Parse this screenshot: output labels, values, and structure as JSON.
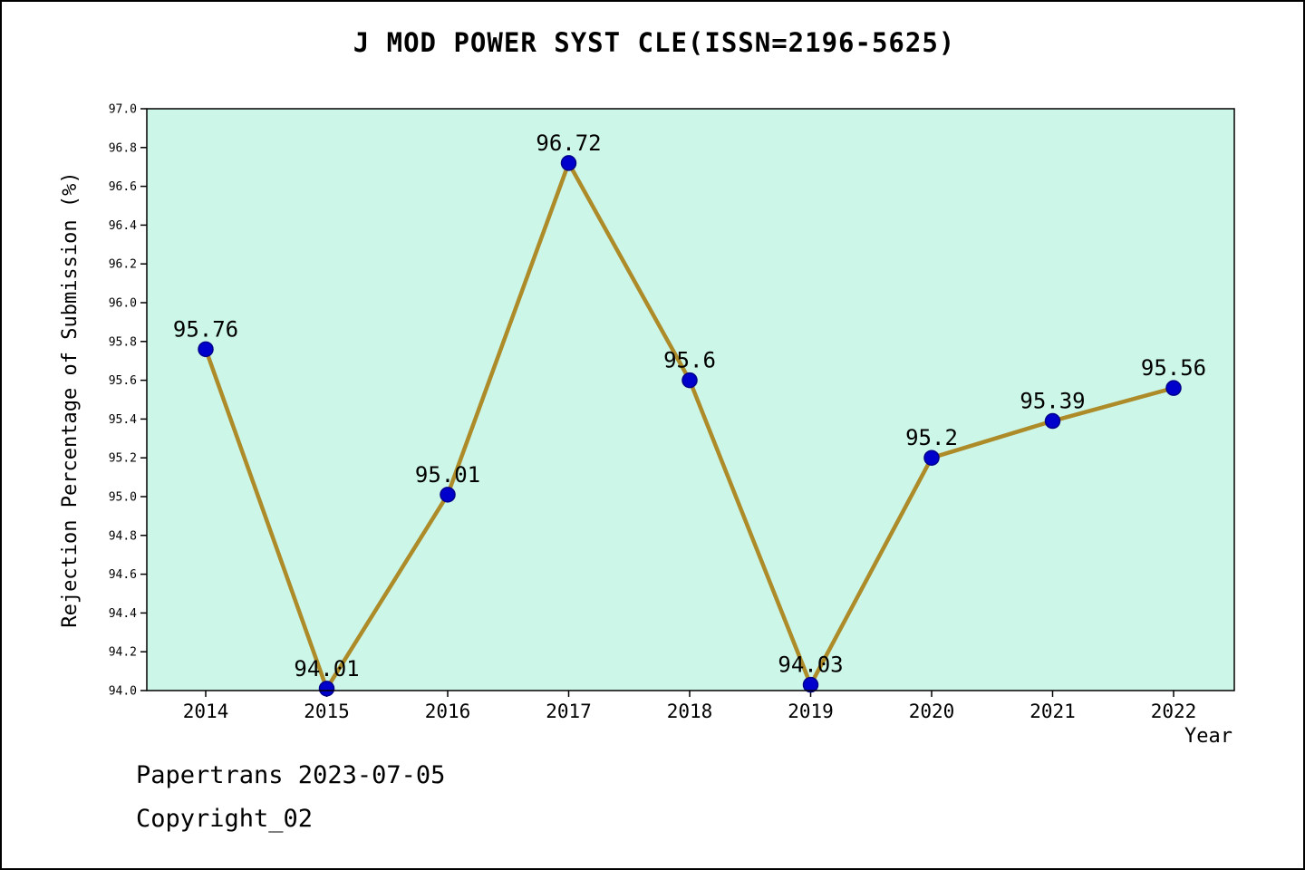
{
  "title": "J MOD POWER SYST CLE(ISSN=2196-5625)",
  "footer": {
    "papertrans": "Papertrans 2023-07-05",
    "copyright": "Copyright_02"
  },
  "chart_data": {
    "type": "line",
    "title": "J MOD POWER SYST CLE(ISSN=2196-5625)",
    "x": [
      2014,
      2015,
      2016,
      2017,
      2018,
      2019,
      2020,
      2021,
      2022
    ],
    "values": [
      95.76,
      94.01,
      95.01,
      96.72,
      95.6,
      94.03,
      95.2,
      95.39,
      95.56
    ],
    "point_labels": [
      "95.76",
      "94.01",
      "95.01",
      "96.72",
      "95.6",
      "94.03",
      "95.2",
      "95.39",
      "95.56"
    ],
    "xlabel": "Year",
    "ylabel": "Rejection Percentage of Submission (%)",
    "ylim": [
      94.0,
      97.0
    ],
    "ytick_step": 0.2,
    "grid": false,
    "legend": "none",
    "colors": {
      "line": "#ad8b28",
      "marker_fill": "#0000cd",
      "marker_edge": "#00008b",
      "plot_bg": "#ccf6e8",
      "axis": "#000000"
    }
  }
}
